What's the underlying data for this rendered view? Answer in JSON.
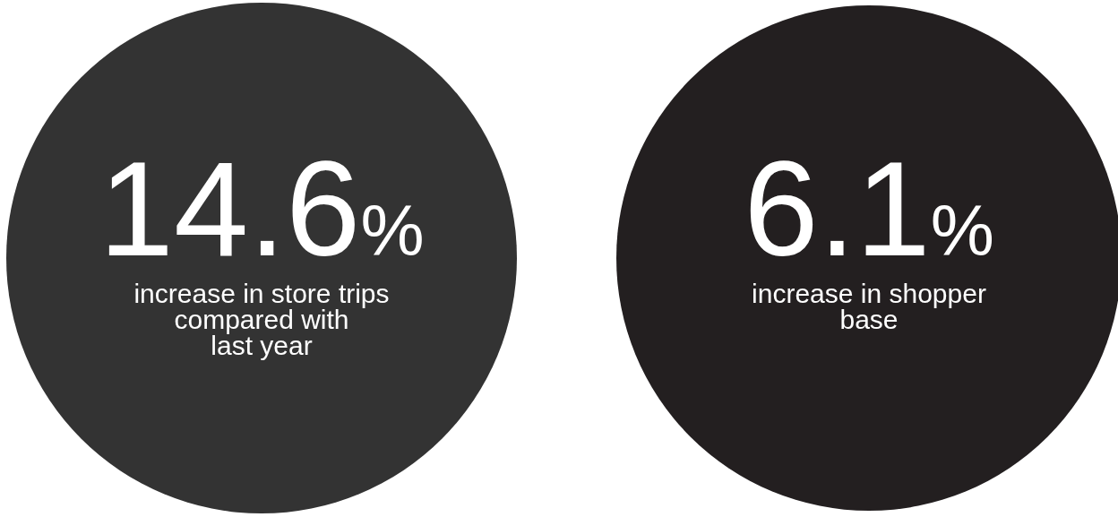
{
  "chart_data": {
    "type": "other",
    "categories": [
      "increase in store trips\ncompared with\nlast year",
      "increase in shopper\nbase"
    ],
    "values": [
      14.6,
      6.1
    ],
    "value_labels": [
      "14.6%",
      "6.1%"
    ],
    "colors": [
      "#333333",
      "#231f20"
    ]
  }
}
